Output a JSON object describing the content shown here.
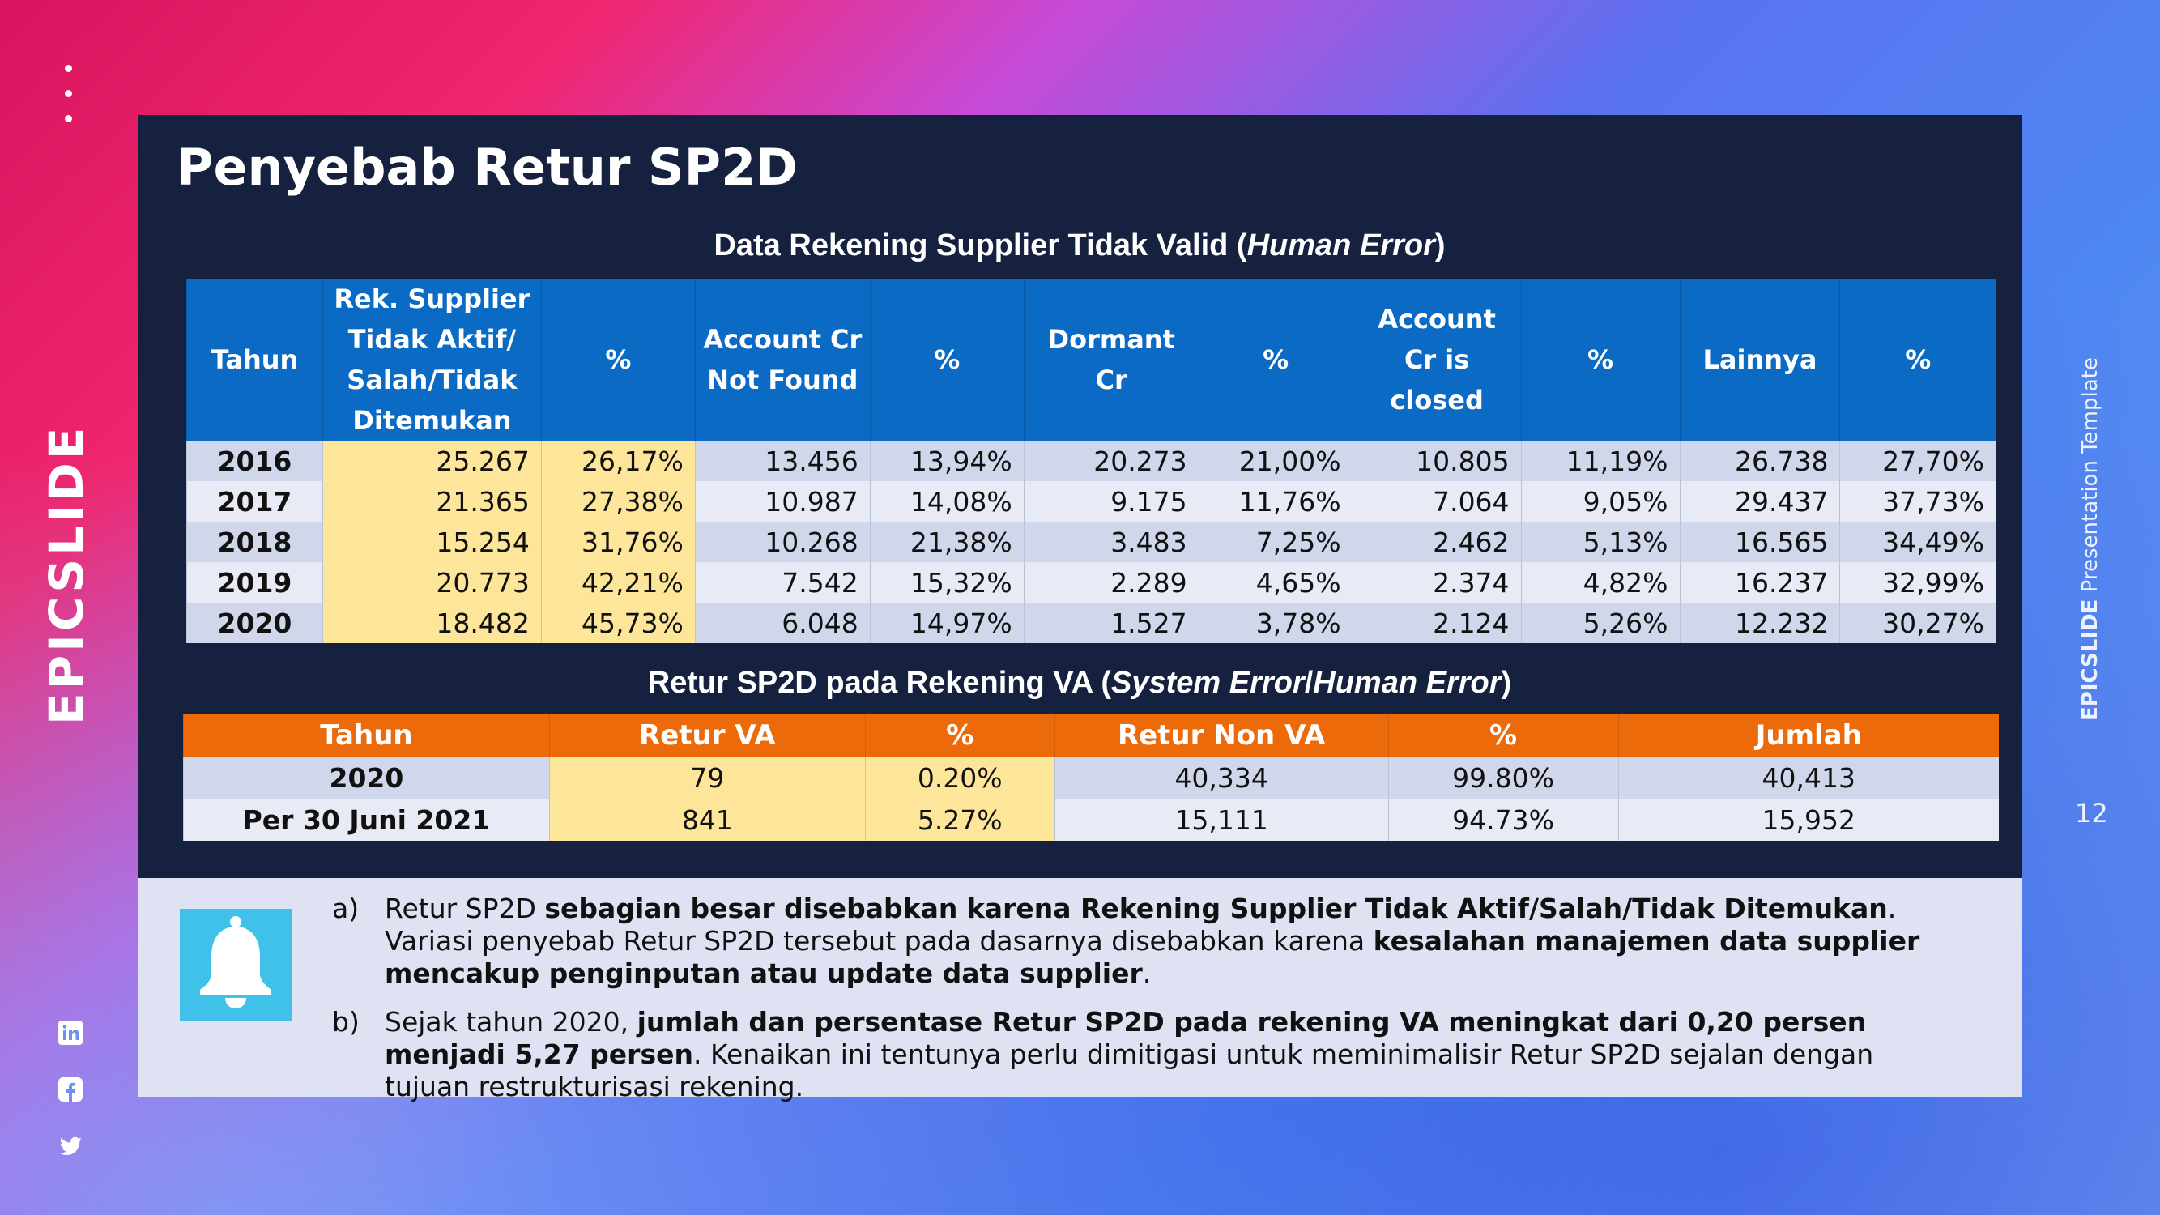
{
  "slide": {
    "title": "Penyebab Retur SP2D",
    "brand_left": "EPICSLIDE",
    "brand_right_bold": "EPICSLIDE",
    "brand_right_rest": " Presentation Template",
    "page_number": "12"
  },
  "table1": {
    "title_main": "Data Rekening Supplier Tidak Valid (",
    "title_italic": "Human Error",
    "title_end": ")",
    "headers": [
      [
        "Tahun"
      ],
      [
        "Rek. Supplier",
        "Tidak Aktif/",
        "Salah/Tidak",
        "Ditemukan"
      ],
      [
        "%"
      ],
      [
        "Account Cr",
        "Not Found"
      ],
      [
        "%"
      ],
      [
        "Dormant",
        "Cr"
      ],
      [
        "%"
      ],
      [
        "Account",
        "Cr is",
        "closed"
      ],
      [
        "%"
      ],
      [
        "Lainnya"
      ],
      [
        "%"
      ]
    ],
    "rows": [
      [
        "2016",
        "25.267",
        "26,17%",
        "13.456",
        "13,94%",
        "20.273",
        "21,00%",
        "10.805",
        "11,19%",
        "26.738",
        "27,70%"
      ],
      [
        "2017",
        "21.365",
        "27,38%",
        "10.987",
        "14,08%",
        "9.175",
        "11,76%",
        "7.064",
        "9,05%",
        "29.437",
        "37,73%"
      ],
      [
        "2018",
        "15.254",
        "31,76%",
        "10.268",
        "21,38%",
        "3.483",
        "7,25%",
        "2.462",
        "5,13%",
        "16.565",
        "34,49%"
      ],
      [
        "2019",
        "20.773",
        "42,21%",
        "7.542",
        "15,32%",
        "2.289",
        "4,65%",
        "2.374",
        "4,82%",
        "16.237",
        "32,99%"
      ],
      [
        "2020",
        "18.482",
        "45,73%",
        "6.048",
        "14,97%",
        "1.527",
        "3,78%",
        "2.124",
        "5,26%",
        "12.232",
        "30,27%"
      ]
    ]
  },
  "table2": {
    "title_main": "Retur SP2D pada Rekening VA (",
    "title_italic1": "System Error",
    "title_sep": "/",
    "title_italic2": "Human Error",
    "title_end": ")",
    "headers": [
      "Tahun",
      "Retur VA",
      "%",
      "Retur Non VA",
      "%",
      "Jumlah"
    ],
    "rows": [
      [
        "2020",
        "79",
        "0.20%",
        "40,334",
        "99.80%",
        "40,413"
      ],
      [
        "Per 30 Juni 2021",
        "841",
        "5.27%",
        "15,111",
        "94.73%",
        "15,952"
      ]
    ]
  },
  "notes": {
    "a": {
      "label": "a)",
      "p1": "Retur SP2D ",
      "b1": "sebagian besar disebabkan karena Rekening Supplier Tidak Aktif/Salah/Tidak Ditemukan",
      "p2": ". Variasi penyebab Retur SP2D tersebut pada dasarnya disebabkan karena ",
      "b2": "kesalahan manajemen data supplier mencakup penginputan atau update data supplier",
      "p3": "."
    },
    "b": {
      "label": "b)",
      "p1": "Sejak tahun 2020, ",
      "b1": "jumlah dan persentase Retur SP2D pada rekening VA meningkat dari 0,20 persen menjadi 5,27 persen",
      "p2": ". Kenaikan ini tentunya perlu dimitigasi untuk meminimalisir Retur SP2D sejalan dengan tujuan restrukturisasi rekening."
    }
  },
  "icons": [
    "bell-icon",
    "linkedin-icon",
    "facebook-icon",
    "twitter-icon"
  ]
}
